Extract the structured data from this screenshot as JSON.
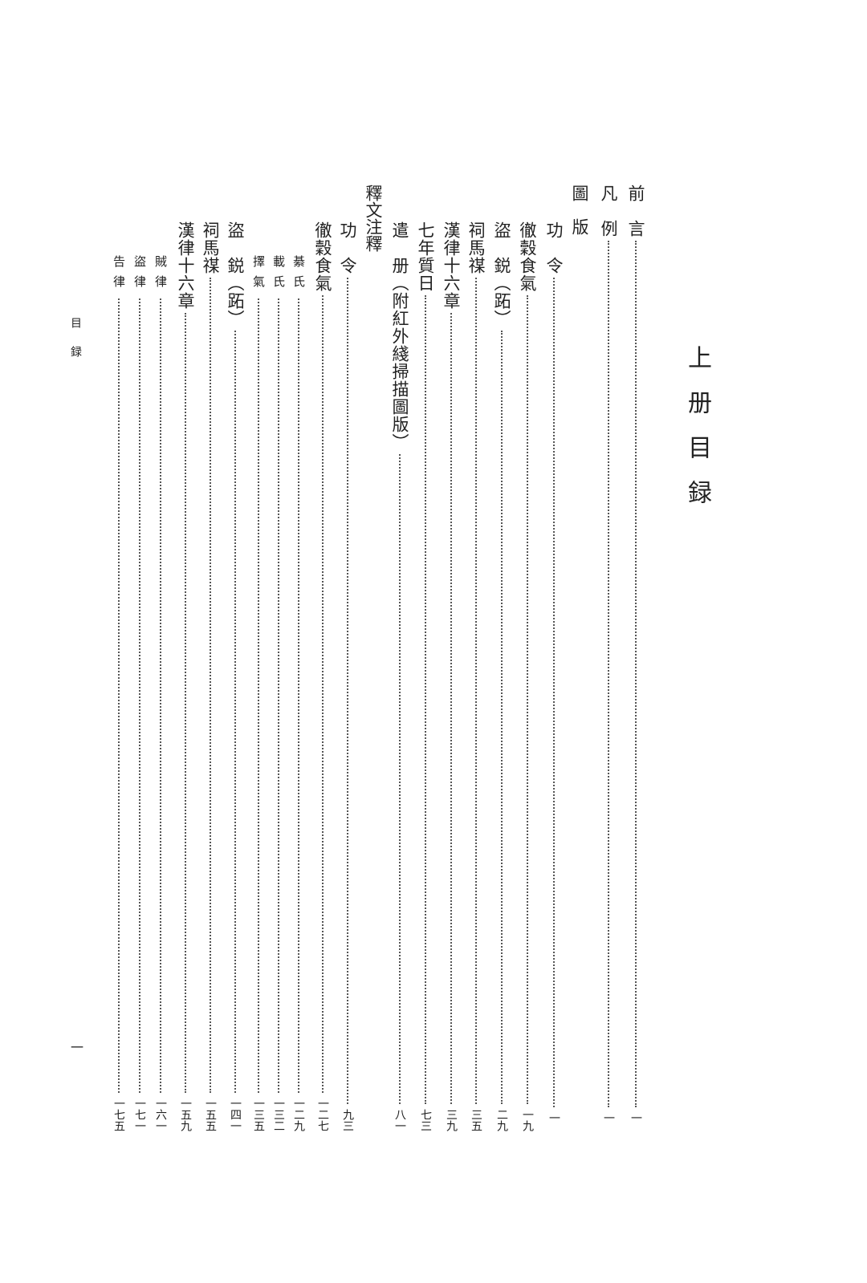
{
  "title": "上册目録",
  "running_header": "目録",
  "page_number": "一",
  "entries": [
    {
      "label": "前　言",
      "page": "一"
    },
    {
      "label": "凡　例",
      "page": "一"
    },
    {
      "label": "圖　版",
      "page": "",
      "heading": true
    },
    {
      "label": "功　令",
      "page": "一"
    },
    {
      "label": "徹穀食氣",
      "page": "一九"
    },
    {
      "label": "盜　鋭（跖）",
      "page": "二九"
    },
    {
      "label": "祠馬禖",
      "page": "三五"
    },
    {
      "label": "漢律十六章",
      "page": "三九"
    },
    {
      "label": "七年質日",
      "page": "七三"
    },
    {
      "label": "遣　册（附紅外綫掃描圖版）",
      "page": "八一"
    },
    {
      "label": "釋文注釋",
      "page": "",
      "heading": true
    },
    {
      "label": "功　令",
      "page": "九三"
    },
    {
      "label": "徹穀食氣",
      "page": "一二七"
    },
    {
      "label": "綦氏",
      "page": "一二九",
      "sub": true
    },
    {
      "label": "載氏",
      "page": "一三二",
      "sub": true
    },
    {
      "label": "擇氣",
      "page": "一三五",
      "sub": true
    },
    {
      "label": "盜　鋭（跖）",
      "page": "一四一"
    },
    {
      "label": "祠馬禖",
      "page": "一五五"
    },
    {
      "label": "漢律十六章",
      "page": "一五九"
    },
    {
      "label": "賊律",
      "page": "一六一",
      "sub": true
    },
    {
      "label": "盜律",
      "page": "一七一",
      "sub": true
    },
    {
      "label": "告律",
      "page": "一七五",
      "sub": true
    }
  ]
}
